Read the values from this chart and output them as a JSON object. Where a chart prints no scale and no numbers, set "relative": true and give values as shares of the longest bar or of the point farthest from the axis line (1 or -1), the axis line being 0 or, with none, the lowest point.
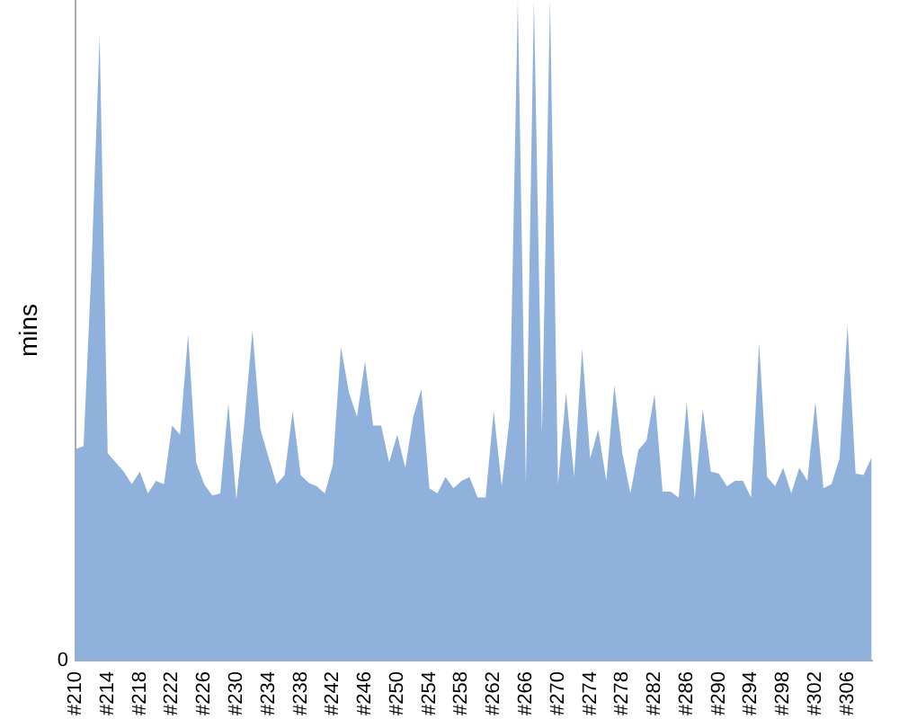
{
  "chart_data": {
    "type": "area",
    "ylabel": "mins",
    "relative": true,
    "annotations": [
      "0"
    ],
    "categories": [
      "#210",
      null,
      null,
      null,
      "#214",
      null,
      null,
      null,
      "#218",
      null,
      null,
      null,
      "#222",
      null,
      null,
      null,
      "#226",
      null,
      null,
      null,
      "#230",
      null,
      null,
      null,
      "#234",
      null,
      null,
      null,
      "#238",
      null,
      null,
      null,
      "#242",
      null,
      null,
      null,
      "#246",
      null,
      null,
      null,
      "#250",
      null,
      null,
      null,
      "#254",
      null,
      null,
      null,
      "#258",
      null,
      null,
      null,
      "#262",
      null,
      null,
      null,
      "#266",
      null,
      null,
      null,
      "#270",
      null,
      null,
      null,
      "#274",
      null,
      null,
      null,
      "#278",
      null,
      null,
      null,
      "#282",
      null,
      null,
      null,
      "#286",
      null,
      null,
      null,
      "#290",
      null,
      null,
      null,
      "#294",
      null,
      null,
      null,
      "#298",
      null,
      null,
      null,
      "#302",
      null,
      null,
      null,
      "#306",
      null,
      null,
      null
    ],
    "series": [
      {
        "color": "#8fb1db",
        "values": [
          0.32,
          0.325,
          0.6,
          0.947,
          0.314,
          0.3,
          0.286,
          0.267,
          0.286,
          0.253,
          0.272,
          0.267,
          0.356,
          0.342,
          0.494,
          0.3,
          0.267,
          0.25,
          0.253,
          0.389,
          0.244,
          0.361,
          0.5,
          0.35,
          0.308,
          0.267,
          0.281,
          0.378,
          0.281,
          0.269,
          0.264,
          0.253,
          0.297,
          0.475,
          0.406,
          0.369,
          0.453,
          0.356,
          0.356,
          0.3,
          0.342,
          0.292,
          0.369,
          0.411,
          0.261,
          0.253,
          0.278,
          0.261,
          0.272,
          0.278,
          0.247,
          0.247,
          0.378,
          0.264,
          0.369,
          1,
          0.267,
          1,
          0.342,
          1,
          0.267,
          0.406,
          0.278,
          0.472,
          0.306,
          0.35,
          0.272,
          0.417,
          0.314,
          0.253,
          0.319,
          0.333,
          0.403,
          0.256,
          0.256,
          0.247,
          0.392,
          0.244,
          0.381,
          0.286,
          0.283,
          0.264,
          0.272,
          0.272,
          0.247,
          0.481,
          0.278,
          0.264,
          0.292,
          0.253,
          0.292,
          0.272,
          0.392,
          0.261,
          0.267,
          0.306,
          0.508,
          0.283,
          0.281,
          0.308
        ]
      }
    ],
    "grid": false,
    "legend": false
  }
}
